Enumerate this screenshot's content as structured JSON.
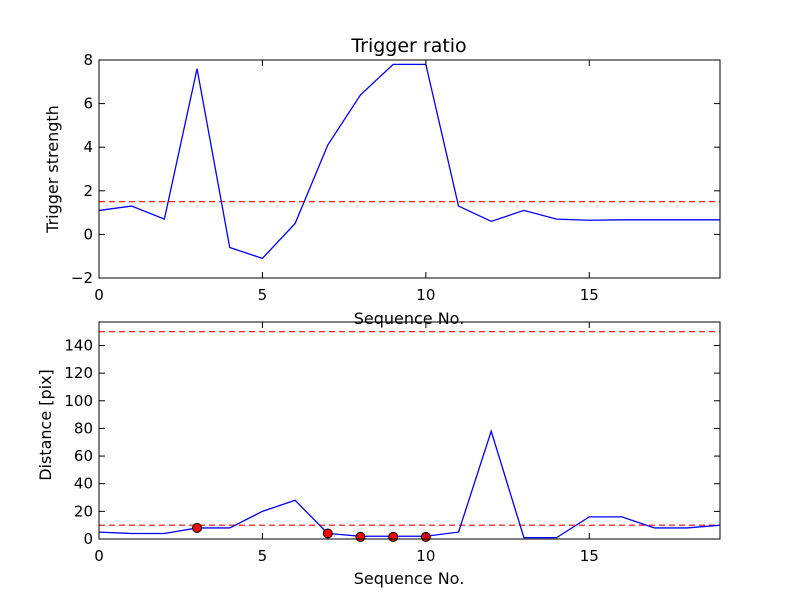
{
  "chart_data": [
    {
      "type": "line",
      "title": "Trigger ratio",
      "xlabel": "Sequence No.",
      "ylabel": "Trigger strength",
      "xlim": [
        0,
        19
      ],
      "ylim": [
        -2,
        8
      ],
      "xticks": [
        0,
        5,
        10,
        15
      ],
      "yticks": [
        -2,
        0,
        2,
        4,
        6,
        8
      ],
      "ytick_labels": [
        "−2",
        "0",
        "2",
        "4",
        "6",
        "8"
      ],
      "grid": false,
      "series": [
        {
          "x": [
            0,
            1,
            2,
            3,
            4,
            5,
            6,
            7,
            8,
            9,
            10,
            11,
            12,
            13,
            14,
            15,
            16,
            17,
            18,
            19
          ],
          "values": [
            1.1,
            1.3,
            0.7,
            7.6,
            -0.6,
            -1.1,
            0.5,
            4.1,
            6.4,
            7.8,
            7.8,
            1.3,
            0.6,
            1.1,
            0.7,
            0.65,
            0.67,
            0.67,
            0.67,
            0.67
          ],
          "color": "#0000ff"
        }
      ],
      "hlines": [
        {
          "y": 1.5,
          "color": "#ff0000",
          "style": "dashed"
        }
      ]
    },
    {
      "type": "line",
      "title": "",
      "xlabel": "Sequence No.",
      "ylabel": "Distance [pix]",
      "xlim": [
        0,
        19
      ],
      "ylim": [
        0,
        157
      ],
      "xticks": [
        0,
        5,
        10,
        15
      ],
      "yticks": [
        0,
        20,
        40,
        60,
        80,
        100,
        120,
        140
      ],
      "ytick_labels": [
        "0",
        "20",
        "40",
        "60",
        "80",
        "100",
        "120",
        "140"
      ],
      "grid": false,
      "series": [
        {
          "x": [
            0,
            1,
            2,
            3,
            4,
            5,
            6,
            7,
            8,
            9,
            10,
            11,
            12,
            13,
            14,
            15,
            16,
            17,
            18,
            19
          ],
          "values": [
            5,
            4,
            4,
            8,
            8,
            20,
            28,
            4,
            2,
            2,
            2,
            5,
            78,
            1,
            1,
            16,
            16,
            8,
            8,
            10
          ],
          "color": "#0000ff"
        }
      ],
      "markers": {
        "x": [
          3,
          7,
          8,
          9,
          10
        ],
        "values": [
          8,
          4,
          1.5,
          1.5,
          1.5
        ],
        "color": "#ff0000"
      },
      "hlines": [
        {
          "y": 10,
          "color": "#ff0000",
          "style": "dashed"
        },
        {
          "y": 150,
          "color": "#ff0000",
          "style": "dashed"
        }
      ]
    }
  ]
}
